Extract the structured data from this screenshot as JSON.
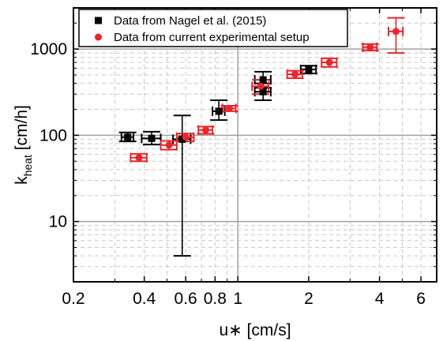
{
  "chart_data": {
    "type": "scatter",
    "title": "",
    "xlabel": "u∗ [cm/s]",
    "ylabel_main": "k",
    "ylabel_sub": "heat",
    "ylabel_unit": " [cm/h]",
    "xscale": "log",
    "yscale": "log",
    "xlim": [
      0.2,
      7
    ],
    "ylim": [
      2.0,
      3000
    ],
    "grid": true,
    "legend_position": "top-left",
    "x_ticks": [
      {
        "value": 0.2,
        "label": "0.2"
      },
      {
        "value": 0.4,
        "label": "0.4"
      },
      {
        "value": 0.6,
        "label": "0.6"
      },
      {
        "value": 0.8,
        "label": "0.8"
      },
      {
        "value": 1,
        "label": "1"
      },
      {
        "value": 2,
        "label": "2"
      },
      {
        "value": 4,
        "label": "4"
      },
      {
        "value": 6,
        "label": "6"
      }
    ],
    "y_ticks": [
      {
        "value": 10,
        "label": "10"
      },
      {
        "value": 100,
        "label": "100"
      },
      {
        "value": 1000,
        "label": "1000"
      }
    ],
    "series": [
      {
        "name": "Data from Nagel et al. (2015)",
        "color": "#000000",
        "marker": "square",
        "points": [
          {
            "x": 0.34,
            "y": 95,
            "xerr": [
              0.32,
              0.36
            ],
            "yerr": [
              85,
              108
            ]
          },
          {
            "x": 0.43,
            "y": 92,
            "xerr": [
              0.39,
              0.47
            ],
            "yerr": [
              78,
              110
            ]
          },
          {
            "x": 0.58,
            "y": 90,
            "xerr": [
              0.53,
              0.63
            ],
            "yerr": [
              4,
              170
            ]
          },
          {
            "x": 0.83,
            "y": 190,
            "xerr": [
              0.78,
              0.88
            ],
            "yerr": [
              150,
              255
            ]
          },
          {
            "x": 1.28,
            "y": 440,
            "xerr": [
              1.18,
              1.38
            ],
            "yerr": [
              355,
              545
            ]
          },
          {
            "x": 1.28,
            "y": 320,
            "xerr": [
              1.18,
              1.38
            ],
            "yerr": [
              255,
              400
            ]
          },
          {
            "x": 2.0,
            "y": 580,
            "xerr": [
              1.85,
              2.15
            ],
            "yerr": [
              520,
              640
            ]
          }
        ]
      },
      {
        "name": "Data from current experimental setup",
        "color": "#e8262b",
        "marker": "circle",
        "points": [
          {
            "x": 0.38,
            "y": 55,
            "xerr": [
              0.35,
              0.41
            ],
            "yerr": [
              50,
              61
            ]
          },
          {
            "x": 0.51,
            "y": 77,
            "xerr": [
              0.47,
              0.55
            ],
            "yerr": [
              68,
              86
            ]
          },
          {
            "x": 0.6,
            "y": 95,
            "xerr": [
              0.55,
              0.65
            ],
            "yerr": [
              85,
              105
            ]
          },
          {
            "x": 0.73,
            "y": 115,
            "xerr": [
              0.68,
              0.78
            ],
            "yerr": [
              104,
              126
            ]
          },
          {
            "x": 0.92,
            "y": 205,
            "xerr": [
              0.86,
              0.98
            ],
            "yerr": [
              190,
              220
            ]
          },
          {
            "x": 1.25,
            "y": 370,
            "xerr": [
              1.15,
              1.35
            ],
            "yerr": [
              300,
              440
            ]
          },
          {
            "x": 1.75,
            "y": 510,
            "xerr": [
              1.62,
              1.88
            ],
            "yerr": [
              460,
              560
            ]
          },
          {
            "x": 2.45,
            "y": 700,
            "xerr": [
              2.27,
              2.63
            ],
            "yerr": [
              620,
              780
            ]
          },
          {
            "x": 3.65,
            "y": 1050,
            "xerr": [
              3.4,
              3.9
            ],
            "yerr": [
              960,
              1140
            ]
          },
          {
            "x": 4.7,
            "y": 1600,
            "xerr": [
              4.37,
              5.03
            ],
            "yerr": [
              900,
              2300
            ]
          }
        ]
      }
    ]
  }
}
